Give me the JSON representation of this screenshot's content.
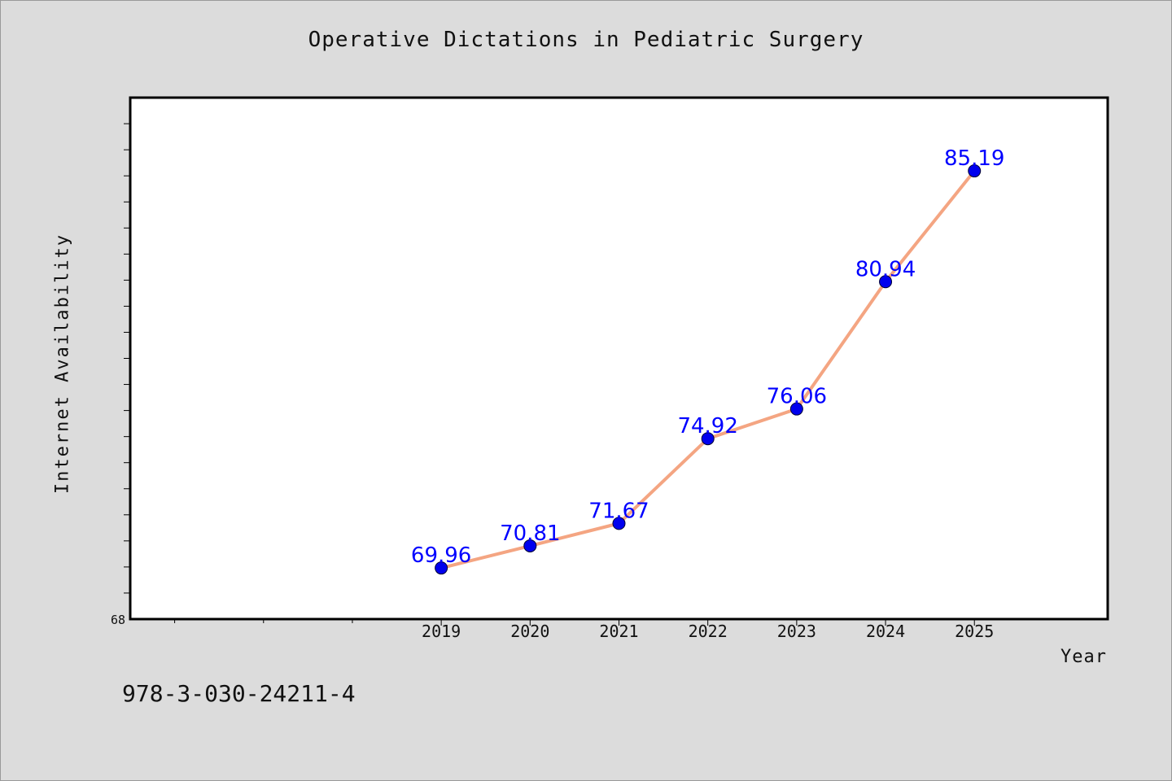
{
  "colors": {
    "background": "#dcdcdc",
    "plot_background": "#ffffff",
    "line": "#f4a582",
    "marker": "#0000ee",
    "label": "#0000ff",
    "axis": "#000000"
  },
  "chart_data": {
    "type": "line",
    "title": "Operative Dictations in Pediatric Surgery",
    "xlabel": "Year",
    "ylabel": "Internet Availability",
    "categories": [
      "2019",
      "2020",
      "2021",
      "2022",
      "2023",
      "2024",
      "2025"
    ],
    "x": [
      2019,
      2020,
      2021,
      2022,
      2023,
      2024,
      2025
    ],
    "values": [
      69.96,
      70.81,
      71.67,
      74.92,
      76.06,
      80.94,
      85.19
    ],
    "data_labels": [
      "69.96",
      "70.81",
      "71.67",
      "74.92",
      "76.06",
      "80.94",
      "85.19"
    ],
    "xlim": [
      2015.5,
      2026.5
    ],
    "ylim": [
      68,
      88
    ],
    "y_tick_labels": [
      "68"
    ],
    "grid": false,
    "legend": "none"
  },
  "footer": {
    "code": "978-3-030-24211-4"
  }
}
